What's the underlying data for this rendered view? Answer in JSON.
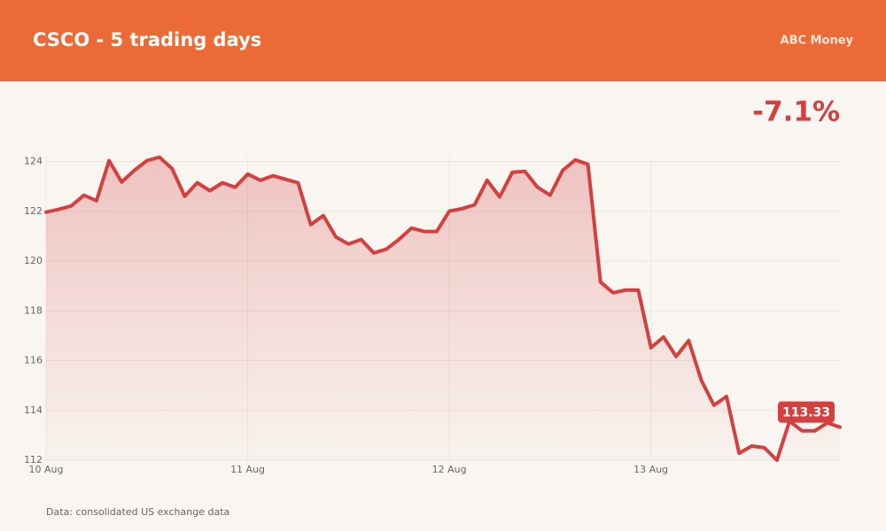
{
  "chart_data": {
    "type": "line",
    "title": "CSCO - 5 trading days",
    "brand": "ABC Money",
    "change": "-7.1%",
    "source": "Data: consolidated US exchange data",
    "color": "#d43f3f",
    "x": [
      0,
      1,
      2,
      3,
      4,
      5,
      6,
      7,
      8,
      9,
      10,
      11,
      12,
      13,
      14,
      15,
      16,
      17,
      18,
      19,
      20,
      21,
      22,
      23,
      24,
      25,
      26,
      27,
      28,
      29,
      30,
      31,
      32,
      33,
      34,
      35,
      36,
      37,
      38,
      39,
      40,
      41,
      42,
      43,
      44,
      45,
      46,
      47,
      48,
      49,
      50,
      51,
      52,
      53,
      54,
      55,
      56,
      57,
      58,
      59,
      60,
      61,
      62,
      63
    ],
    "values": [
      121.97,
      122.08,
      122.22,
      122.65,
      122.43,
      124.04,
      123.18,
      123.65,
      124.04,
      124.18,
      123.72,
      122.61,
      123.15,
      122.83,
      123.15,
      122.97,
      123.5,
      123.25,
      123.43,
      123.29,
      123.15,
      121.47,
      121.83,
      120.97,
      120.69,
      120.87,
      120.33,
      120.48,
      120.87,
      121.33,
      121.19,
      121.19,
      122.01,
      122.11,
      122.26,
      123.25,
      122.58,
      123.57,
      123.61,
      122.97,
      122.65,
      123.65,
      124.07,
      123.89,
      119.16,
      118.73,
      118.84,
      118.84,
      116.52,
      116.95,
      116.17,
      116.81,
      115.21,
      114.21,
      114.56,
      112.28,
      112.57,
      112.5,
      112.0,
      113.57,
      113.18,
      113.18,
      113.5,
      113.33
    ],
    "xlim": [
      0,
      63
    ],
    "xticks": [
      {
        "value": 0,
        "label": "10 Aug"
      },
      {
        "value": 16,
        "label": "11 Aug"
      },
      {
        "value": 32,
        "label": "12 Aug"
      },
      {
        "value": 48,
        "label": "13 Aug"
      }
    ],
    "ylim": [
      112,
      124.2
    ],
    "yticks": [
      112,
      114,
      116,
      118,
      120,
      122,
      124
    ],
    "grid": true
  }
}
